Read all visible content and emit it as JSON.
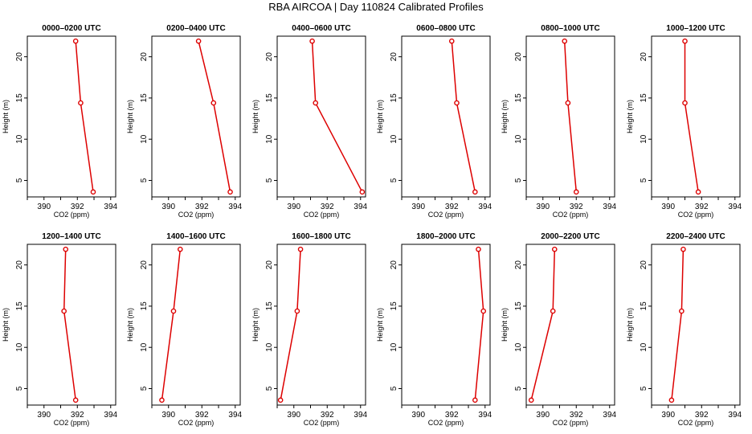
{
  "title": "RBA AIRCOA  |  Day 110824  Calibrated Profiles",
  "chart_data": {
    "type": "line",
    "title": "RBA AIRCOA  |  Day 110824  Calibrated Profiles",
    "xlabel": "CO2 (ppm)",
    "ylabel": "Height (m)",
    "xlim": [
      389,
      394.3
    ],
    "ylim": [
      3,
      22.5
    ],
    "xticks": [
      390,
      392,
      394
    ],
    "yticks": [
      5,
      10,
      15,
      20
    ],
    "grid": false,
    "panels": [
      {
        "title": "0000–0200 UTC",
        "co2": [
          391.9,
          392.2,
          392.95
        ],
        "height": [
          21.9,
          14.4,
          3.6
        ]
      },
      {
        "title": "0200–0400 UTC",
        "co2": [
          391.8,
          392.7,
          393.7
        ],
        "height": [
          21.9,
          14.4,
          3.6
        ]
      },
      {
        "title": "0400–0600 UTC",
        "co2": [
          391.1,
          391.3,
          394.1
        ],
        "height": [
          21.9,
          14.4,
          3.6
        ]
      },
      {
        "title": "0600–0800 UTC",
        "co2": [
          392.0,
          392.3,
          393.4
        ],
        "height": [
          21.9,
          14.4,
          3.6
        ]
      },
      {
        "title": "0800–1000 UTC",
        "co2": [
          391.3,
          391.5,
          392.0
        ],
        "height": [
          21.9,
          14.4,
          3.6
        ]
      },
      {
        "title": "1000–1200 UTC",
        "co2": [
          391.0,
          391.0,
          391.8
        ],
        "height": [
          21.9,
          14.4,
          3.6
        ]
      },
      {
        "title": "1200–1400 UTC",
        "co2": [
          391.3,
          391.2,
          391.9
        ],
        "height": [
          21.9,
          14.4,
          3.6
        ]
      },
      {
        "title": "1400–1600 UTC",
        "co2": [
          390.7,
          390.3,
          389.6
        ],
        "height": [
          21.9,
          14.4,
          3.6
        ]
      },
      {
        "title": "1600–1800 UTC",
        "co2": [
          390.4,
          390.2,
          389.2
        ],
        "height": [
          21.9,
          14.4,
          3.6
        ]
      },
      {
        "title": "1800–2000 UTC",
        "co2": [
          393.6,
          393.9,
          393.4
        ],
        "height": [
          21.9,
          14.4,
          3.6
        ]
      },
      {
        "title": "2000–2200 UTC",
        "co2": [
          390.7,
          390.6,
          389.3
        ],
        "height": [
          21.9,
          14.4,
          3.6
        ]
      },
      {
        "title": "2200–2400 UTC",
        "co2": [
          390.9,
          390.8,
          390.2
        ],
        "height": [
          21.9,
          14.4,
          3.6
        ]
      }
    ],
    "colors": {
      "line": "#dd0000",
      "axis": "#000000"
    }
  }
}
